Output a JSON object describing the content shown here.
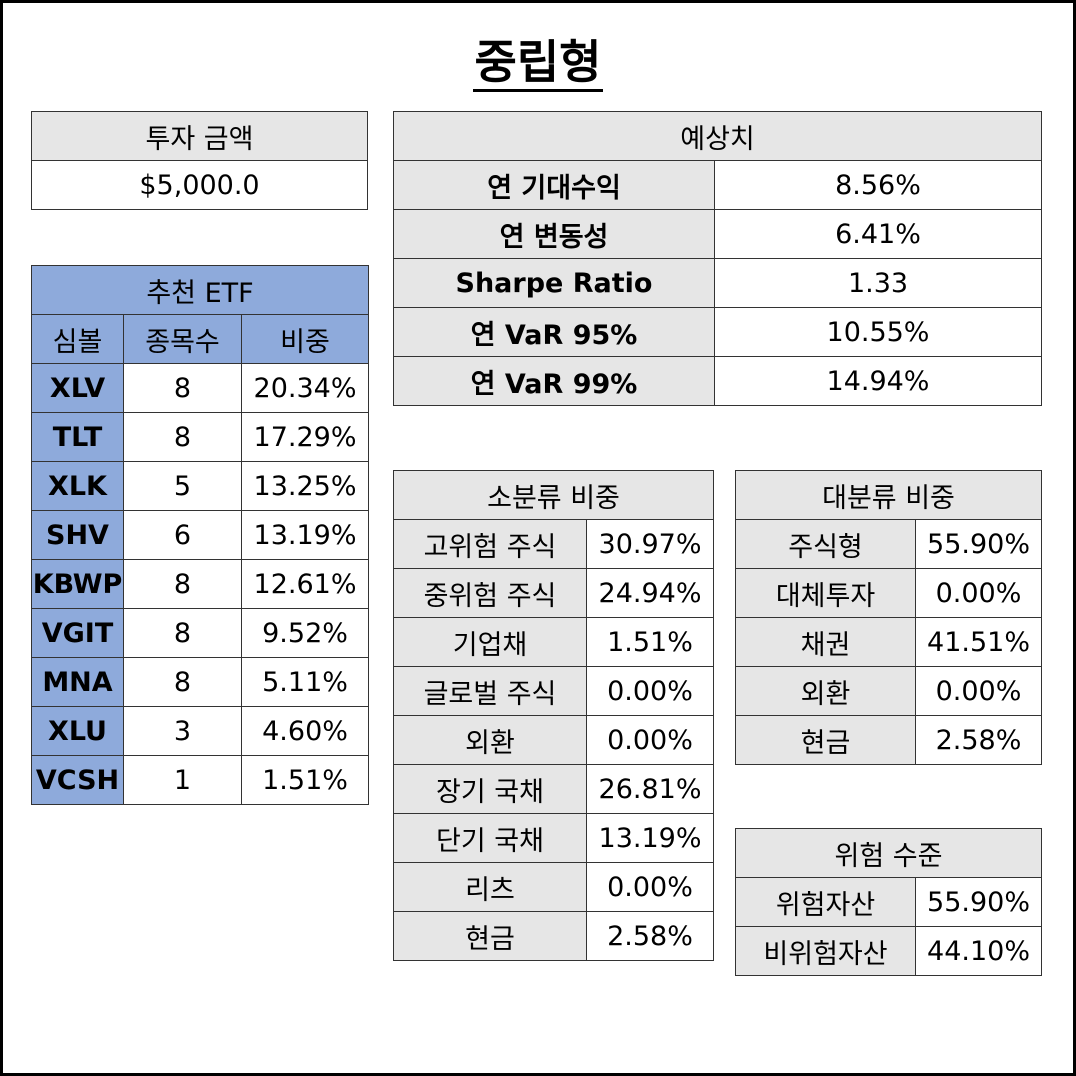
{
  "title": "중립형",
  "investment": {
    "header": "투자 금액",
    "value": "$5,000.0"
  },
  "etf": {
    "header": "추천 ETF",
    "columns": [
      "심볼",
      "종목수",
      "비중"
    ],
    "rows": [
      {
        "symbol": "XLV",
        "count": "8",
        "weight": "20.34%"
      },
      {
        "symbol": "TLT",
        "count": "8",
        "weight": "17.29%"
      },
      {
        "symbol": "XLK",
        "count": "5",
        "weight": "13.25%"
      },
      {
        "symbol": "SHV",
        "count": "6",
        "weight": "13.19%"
      },
      {
        "symbol": "KBWP",
        "count": "8",
        "weight": "12.61%"
      },
      {
        "symbol": "VGIT",
        "count": "8",
        "weight": "9.52%"
      },
      {
        "symbol": "MNA",
        "count": "8",
        "weight": "5.11%"
      },
      {
        "symbol": "XLU",
        "count": "3",
        "weight": "4.60%"
      },
      {
        "symbol": "VCSH",
        "count": "1",
        "weight": "1.51%"
      }
    ]
  },
  "forecast": {
    "header": "예상치",
    "rows": [
      {
        "label": "연 기대수익",
        "value": "8.56%"
      },
      {
        "label": "연 변동성",
        "value": "6.41%"
      },
      {
        "label": "Sharpe Ratio",
        "value": "1.33"
      },
      {
        "label": "연 VaR 95%",
        "value": "10.55%"
      },
      {
        "label": "연 VaR 99%",
        "value": "14.94%"
      }
    ]
  },
  "sub_category": {
    "header": "소분류 비중",
    "rows": [
      {
        "label": "고위험 주식",
        "value": "30.97%"
      },
      {
        "label": "중위험 주식",
        "value": "24.94%"
      },
      {
        "label": "기업채",
        "value": "1.51%"
      },
      {
        "label": "글로벌 주식",
        "value": "0.00%"
      },
      {
        "label": "외환",
        "value": "0.00%"
      },
      {
        "label": "장기 국채",
        "value": "26.81%"
      },
      {
        "label": "단기 국채",
        "value": "13.19%"
      },
      {
        "label": "리츠",
        "value": "0.00%"
      },
      {
        "label": "현금",
        "value": "2.58%"
      }
    ]
  },
  "main_category": {
    "header": "대분류 비중",
    "rows": [
      {
        "label": "주식형",
        "value": "55.90%"
      },
      {
        "label": "대체투자",
        "value": "0.00%"
      },
      {
        "label": "채권",
        "value": "41.51%"
      },
      {
        "label": "외환",
        "value": "0.00%"
      },
      {
        "label": "현금",
        "value": "2.58%"
      }
    ]
  },
  "risk_level": {
    "header": "위험 수준",
    "rows": [
      {
        "label": "위험자산",
        "value": "55.90%"
      },
      {
        "label": "비위험자산",
        "value": "44.10%"
      }
    ]
  }
}
